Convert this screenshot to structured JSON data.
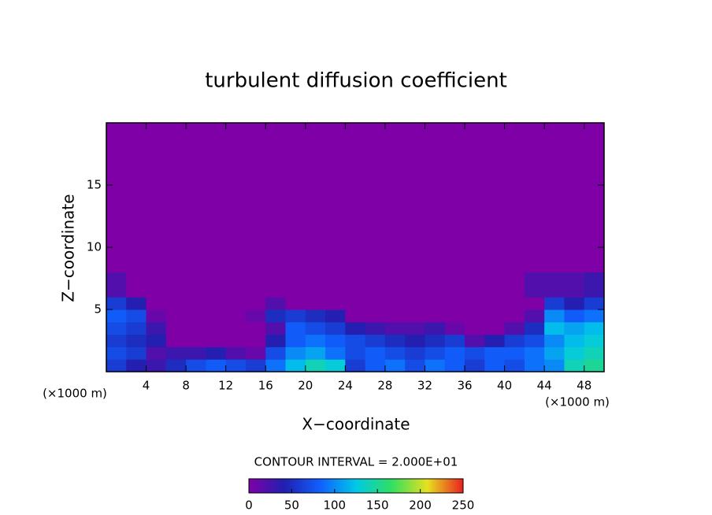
{
  "chart_data": {
    "type": "heatmap",
    "title": "turbulent diffusion coefficient",
    "xlabel": "X−coordinate",
    "ylabel": "Z−coordinate",
    "xunit": "(×1000 m)",
    "yunit": "(×1000 m)",
    "note": "CONTOUR INTERVAL = 2.000E+01",
    "xlim": [
      0,
      50
    ],
    "ylim": [
      0,
      20
    ],
    "xticks": [
      4,
      8,
      12,
      16,
      20,
      24,
      28,
      32,
      36,
      40,
      44,
      48
    ],
    "yticks": [
      5,
      10,
      15
    ],
    "xbins": [
      0,
      2,
      4,
      6,
      8,
      10,
      12,
      14,
      16,
      18,
      20,
      22,
      24,
      26,
      28,
      30,
      32,
      34,
      36,
      38,
      40,
      42,
      44,
      46,
      48,
      50
    ],
    "zbins": [
      0,
      1,
      2,
      3,
      4,
      5,
      6,
      8,
      20
    ],
    "z": [
      [
        60,
        40,
        30,
        50,
        70,
        80,
        70,
        60,
        90,
        120,
        140,
        130,
        60,
        80,
        90,
        70,
        90,
        80,
        60,
        80,
        70,
        90,
        100,
        140,
        150
      ],
      [
        70,
        60,
        20,
        30,
        30,
        40,
        20,
        10,
        70,
        100,
        110,
        90,
        70,
        80,
        70,
        60,
        70,
        80,
        70,
        80,
        80,
        90,
        110,
        130,
        140
      ],
      [
        60,
        50,
        40,
        0,
        0,
        0,
        0,
        0,
        40,
        80,
        90,
        80,
        70,
        60,
        50,
        40,
        50,
        60,
        20,
        40,
        60,
        70,
        100,
        120,
        130
      ],
      [
        70,
        60,
        30,
        0,
        0,
        0,
        0,
        0,
        20,
        80,
        70,
        60,
        40,
        30,
        20,
        20,
        30,
        10,
        0,
        0,
        20,
        50,
        120,
        110,
        120
      ],
      [
        80,
        70,
        10,
        0,
        0,
        0,
        0,
        10,
        50,
        60,
        50,
        40,
        0,
        0,
        0,
        0,
        0,
        0,
        0,
        0,
        0,
        20,
        100,
        80,
        90
      ],
      [
        60,
        40,
        0,
        0,
        0,
        0,
        0,
        0,
        20,
        0,
        0,
        0,
        0,
        0,
        0,
        0,
        0,
        0,
        0,
        0,
        0,
        0,
        60,
        40,
        60
      ],
      [
        20,
        0,
        0,
        0,
        0,
        0,
        0,
        0,
        0,
        0,
        0,
        0,
        0,
        0,
        0,
        0,
        0,
        0,
        0,
        0,
        0,
        20,
        20,
        20,
        30
      ],
      [
        0,
        0,
        0,
        0,
        0,
        0,
        0,
        0,
        0,
        0,
        0,
        0,
        0,
        0,
        0,
        0,
        0,
        0,
        0,
        0,
        0,
        0,
        0,
        0,
        0
      ]
    ],
    "clim": [
      0,
      250
    ],
    "cticks": [
      0,
      50,
      100,
      150,
      200,
      250
    ],
    "colormap": [
      "#8000a8",
      "#2020b0",
      "#1060ff",
      "#00c8e8",
      "#30e060",
      "#e8e020",
      "#e82020"
    ]
  }
}
